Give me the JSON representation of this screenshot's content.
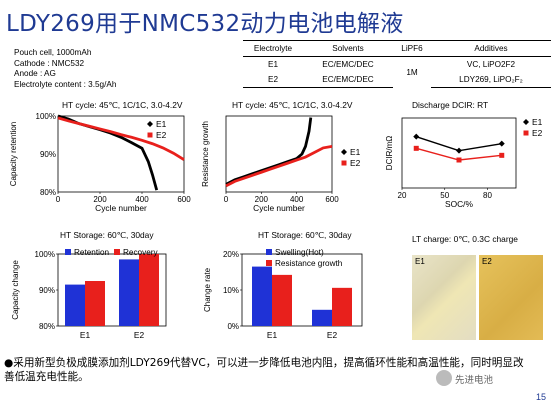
{
  "title": "LDY269用于NMC532动力电池电解液",
  "cell_info": [
    "Pouch cell, 1000mAh",
    "Cathode : NMC532",
    "Anode : AG",
    "Electrolyte content : 3.5g/Ah"
  ],
  "table": {
    "headers": [
      "Electrolyte",
      "Solvents",
      "LiPF6",
      "Additives"
    ],
    "rows": [
      [
        "E1",
        "EC/EMC/DEC",
        "1M",
        "VC, LiPO2F2"
      ],
      [
        "E2",
        "EC/EMC/DEC",
        "",
        "LDY269, LiPO₂F₂"
      ]
    ]
  },
  "lt_title": "LT charge: 0℃, 0.3C charge",
  "photo_labels": [
    "E1",
    "E2"
  ],
  "bullet": "●采用新型负极成膜添加剂LDY269代替VC，可以进一步降低电池内阻，提高循环性能和高温性能，同时明显改善低温充电性能。",
  "watermark": "先进电池",
  "page_number": "15",
  "colors": {
    "title": "#1f3a93",
    "e1": "#000000",
    "e2": "#e8201c",
    "blue": "#1f32d6",
    "red": "#e8201c"
  },
  "chart_data": [
    {
      "type": "line",
      "title": "HT cycle: 45℃, 1C/1C, 3.0-4.2V",
      "xlabel": "Cycle number",
      "ylabel": "Capacity retention",
      "xlim": [
        0,
        600
      ],
      "ylim": [
        80,
        100
      ],
      "xticks": [
        0,
        200,
        400,
        600
      ],
      "yticks": [
        80,
        90,
        100
      ],
      "ytick_suffix": "%",
      "legend": "top-right",
      "series": [
        {
          "name": "E1",
          "x": [
            0,
            50,
            100,
            150,
            200,
            250,
            300,
            350,
            400,
            430,
            450,
            470
          ],
          "y": [
            100,
            99.2,
            98,
            97.2,
            96.4,
            95.5,
            94.4,
            93,
            91.5,
            88,
            84.5,
            80.5
          ]
        },
        {
          "name": "E2",
          "x": [
            0,
            50,
            100,
            150,
            200,
            250,
            300,
            350,
            400,
            450,
            500,
            550,
            600
          ],
          "y": [
            99.5,
            98.7,
            98,
            97.3,
            96.6,
            95.9,
            95.1,
            94.4,
            93.6,
            92.7,
            91.6,
            90.2,
            88.5
          ]
        }
      ]
    },
    {
      "type": "line",
      "title": "HT cycle: 45℃, 1C/1C, 3.0-4.2V",
      "xlabel": "Cycle number",
      "ylabel": "Resistance growth",
      "xlim": [
        0,
        600
      ],
      "ylim": [
        0,
        50
      ],
      "xticks": [
        0,
        200,
        400,
        600
      ],
      "yticks": [],
      "legend": "right",
      "series": [
        {
          "name": "E1",
          "x": [
            0,
            50,
            100,
            150,
            200,
            250,
            300,
            350,
            400,
            430,
            450,
            470,
            480
          ],
          "y": [
            5,
            8,
            10,
            12,
            14,
            16,
            18,
            20,
            22,
            25,
            30,
            40,
            49
          ]
        },
        {
          "name": "E2",
          "x": [
            0,
            50,
            100,
            150,
            200,
            250,
            300,
            350,
            400,
            450,
            500,
            550,
            600
          ],
          "y": [
            4,
            7,
            9,
            11,
            13,
            15,
            17,
            19,
            21,
            23,
            26,
            29,
            30
          ]
        }
      ]
    },
    {
      "type": "line",
      "title": "Discharge DCIR: RT",
      "xlabel": "SOC/%",
      "ylabel": "DCIR/mΩ",
      "xlim": [
        20,
        100
      ],
      "ylim": [
        5,
        8
      ],
      "xticks": [
        20,
        50,
        80
      ],
      "yticks": [],
      "legend": "top-right",
      "series": [
        {
          "name": "E1",
          "x": [
            30,
            60,
            90
          ],
          "y": [
            7.2,
            6.6,
            6.9
          ]
        },
        {
          "name": "E2",
          "x": [
            30,
            60,
            90
          ],
          "y": [
            6.7,
            6.2,
            6.4
          ]
        }
      ]
    },
    {
      "type": "bar",
      "title": "HT Storage: 60℃, 30day",
      "ylabel": "Capacity change",
      "categories": [
        "E1",
        "E2"
      ],
      "ylim": [
        80,
        100
      ],
      "yticks": [
        80,
        90,
        100
      ],
      "ytick_suffix": "%",
      "legend": "top",
      "series": [
        {
          "name": "Retention",
          "values": [
            91.5,
            98.5
          ]
        },
        {
          "name": "Recovery",
          "values": [
            92.5,
            100
          ]
        }
      ]
    },
    {
      "type": "bar",
      "title": "HT Storage: 60℃, 30day",
      "ylabel": "Change rate",
      "categories": [
        "E1",
        "E2"
      ],
      "ylim": [
        0,
        20
      ],
      "yticks": [
        0,
        10,
        20
      ],
      "ytick_suffix": "%",
      "legend": "top",
      "series": [
        {
          "name": "Swelling(Hot)",
          "values": [
            16.5,
            4.5
          ]
        },
        {
          "name": "Resistance growth",
          "values": [
            14.2,
            10.6
          ]
        }
      ]
    }
  ]
}
